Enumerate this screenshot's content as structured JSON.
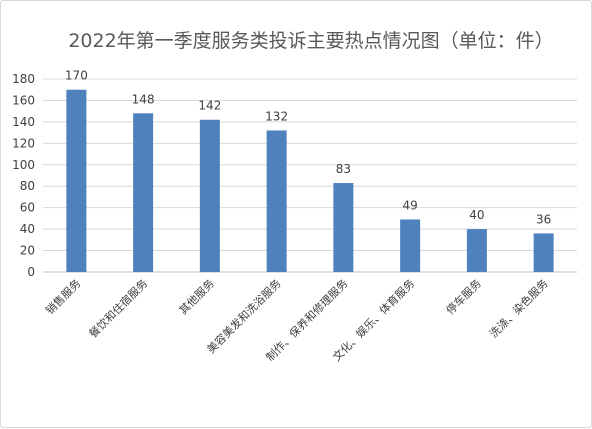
{
  "chart_data": {
    "type": "bar",
    "title": "2022年第一季度服务类投诉主要热点情况图（单位：件）",
    "categories": [
      "销售服务",
      "餐饮和住宿服务",
      "其他服务",
      "美容美发和洗浴服务",
      "制作、保养和修理服务",
      "文化、娱乐、体育服务",
      "停车服务",
      "洗涤、染色服务"
    ],
    "values": [
      170,
      148,
      142,
      132,
      83,
      49,
      40,
      36
    ],
    "ylim": [
      0,
      180
    ],
    "yticks": [
      0,
      20,
      40,
      60,
      80,
      100,
      120,
      140,
      160,
      180
    ],
    "grid": true,
    "legend": "none",
    "bar_color": "#4f81bd",
    "grid_color": "#d9d9d9"
  }
}
